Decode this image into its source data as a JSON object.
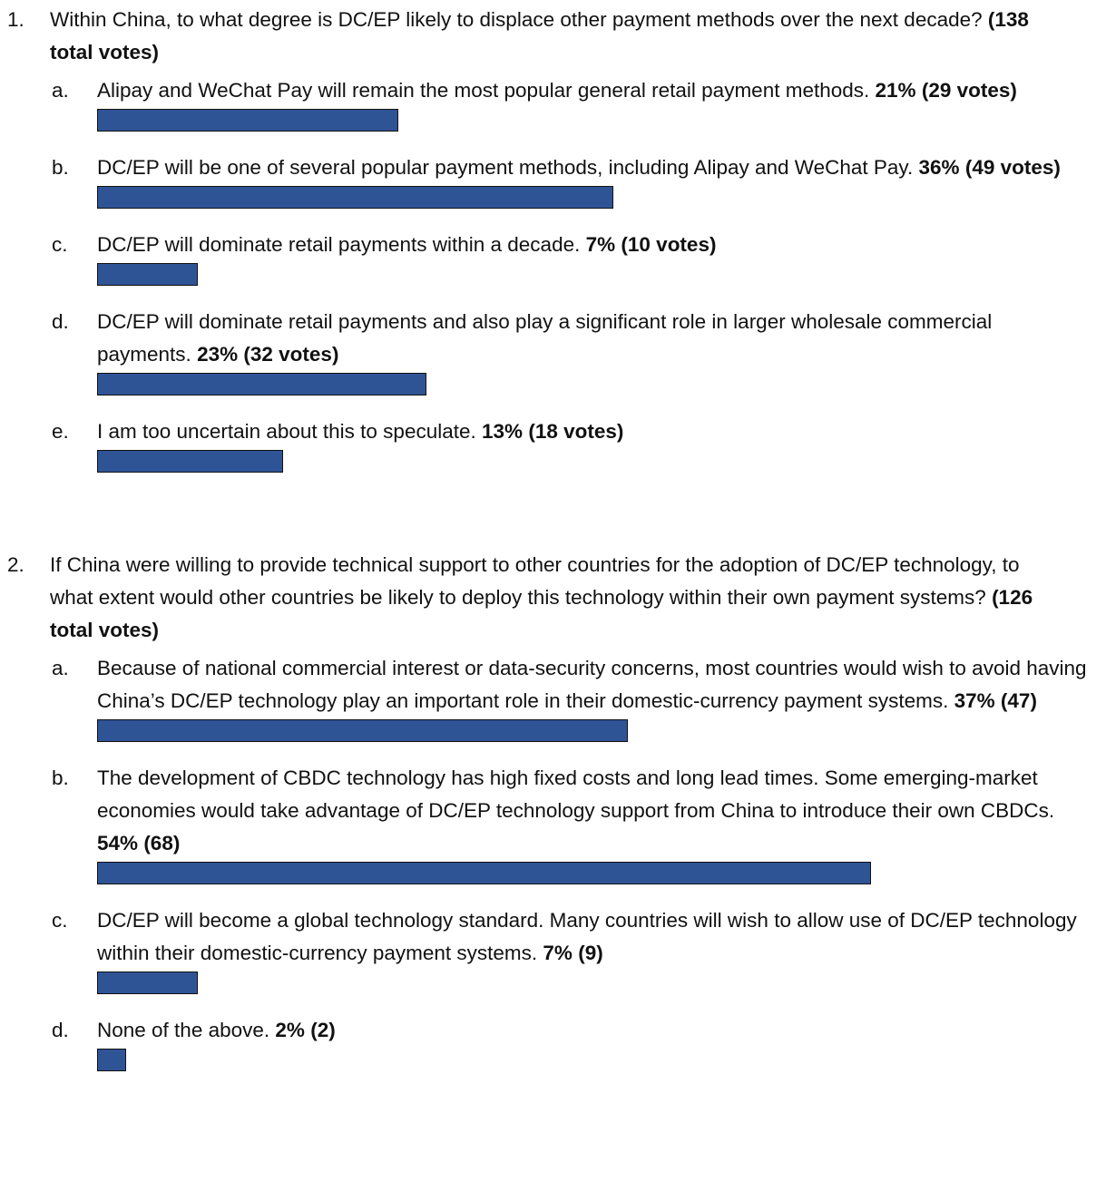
{
  "questions": [
    {
      "number": "1.",
      "text": "Within China, to what degree is DC/EP likely to displace other payment methods over the next decade?",
      "total_label": "(138 total votes)",
      "options": [
        {
          "letter": "a.",
          "text": "Alipay and WeChat Pay will remain the most popular general retail payment methods.",
          "value": 21,
          "value_label": "21%",
          "votes_label": "(29 votes)"
        },
        {
          "letter": "b.",
          "text": "DC/EP will be one of several popular payment methods, including Alipay and WeChat Pay.",
          "value": 36,
          "value_label": "36%",
          "votes_label": "(49 votes)"
        },
        {
          "letter": "c.",
          "text": "DC/EP will dominate retail payments within a decade.",
          "value": 7,
          "value_label": "7%",
          "votes_label": "(10 votes)"
        },
        {
          "letter": "d.",
          "text": "DC/EP will dominate retail payments and also play a significant role in larger wholesale commercial payments.",
          "value": 23,
          "value_label": "23%",
          "votes_label": "(32 votes)"
        },
        {
          "letter": "e.",
          "text": "I am too uncertain about this to speculate.",
          "value": 13,
          "value_label": "13%",
          "votes_label": "(18 votes)"
        }
      ]
    },
    {
      "number": "2.",
      "text": "If China were willing to provide technical support to other countries for the adoption of DC/EP technology, to what extent would other countries be likely to deploy this technology within their own payment systems?",
      "total_label": "(126 total votes)",
      "options": [
        {
          "letter": "a.",
          "text": "Because of national commercial interest or data-security concerns, most countries would wish to avoid having China’s DC/EP technology play an important role in their domestic-currency payment systems.",
          "value": 37,
          "value_label": "37%",
          "votes_label": "(47)"
        },
        {
          "letter": "b.",
          "text": "The development of CBDC technology has high fixed costs and long lead times. Some emerging-market economies would take advantage of DC/EP technology support from China to introduce their own CBDCs.",
          "value": 54,
          "value_label": "54%",
          "votes_label": "(68)"
        },
        {
          "letter": "c.",
          "text": "DC/EP will become a global technology standard. Many countries will wish to allow use of DC/EP technology within their domestic-currency payment systems.",
          "value": 7,
          "value_label": "7%",
          "votes_label": "(9)"
        },
        {
          "letter": "d.",
          "text": "None of the above.",
          "value": 2,
          "value_label": "2%",
          "votes_label": "(2)"
        }
      ]
    }
  ]
}
